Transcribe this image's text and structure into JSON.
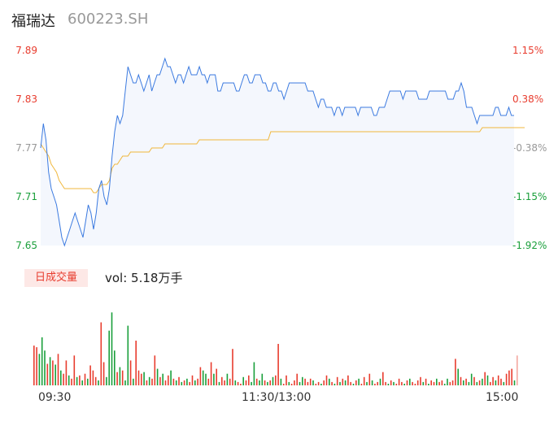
{
  "header": {
    "name": "福瑞达",
    "code": "600223.SH"
  },
  "price_axis": [
    {
      "label": "7.89",
      "color": "#e83c2e"
    },
    {
      "label": "7.83",
      "color": "#e83c2e"
    },
    {
      "label": "7.77",
      "color": "#999999"
    },
    {
      "label": "7.71",
      "color": "#1a9f3b"
    },
    {
      "label": "7.65",
      "color": "#1a9f3b"
    }
  ],
  "pct_axis": [
    {
      "label": "1.15%",
      "color": "#e83c2e"
    },
    {
      "label": "0.38%",
      "color": "#e83c2e"
    },
    {
      "label": "-0.38%",
      "color": "#999999"
    },
    {
      "label": "-1.15%",
      "color": "#1a9f3b"
    },
    {
      "label": "-1.92%",
      "color": "#1a9f3b"
    }
  ],
  "volume": {
    "badge": "日成交量",
    "text": "vol: 5.18万手"
  },
  "time_axis": [
    "09:30",
    "11:30/13:00",
    "15:00"
  ],
  "colors": {
    "price_line": "#3b7ae0",
    "avg_line": "#f0b73c",
    "up": "#e83c2e",
    "down": "#1a9f3b",
    "area": "#f4f7fd"
  },
  "chart_data": {
    "type": "line",
    "title": "",
    "ylim": [
      7.65,
      7.89
    ],
    "series": [
      {
        "values": [
          7.77,
          7.8,
          7.78,
          7.74,
          7.72,
          7.71,
          7.7,
          7.68,
          7.66,
          7.65,
          7.66,
          7.67,
          7.68,
          7.69,
          7.68,
          7.67,
          7.66,
          7.68,
          7.7,
          7.69,
          7.67,
          7.69,
          7.72,
          7.73,
          7.71,
          7.7,
          7.72,
          7.76,
          7.79,
          7.81,
          7.8,
          7.81,
          7.84,
          7.87,
          7.86,
          7.85,
          7.85,
          7.86,
          7.85,
          7.84,
          7.85,
          7.86,
          7.84,
          7.85,
          7.86,
          7.86,
          7.87,
          7.88,
          7.87,
          7.87,
          7.86,
          7.85,
          7.86,
          7.86,
          7.85,
          7.86,
          7.87,
          7.86,
          7.86,
          7.86,
          7.87,
          7.86,
          7.86,
          7.85,
          7.86,
          7.86,
          7.86,
          7.84,
          7.84,
          7.85,
          7.85,
          7.85,
          7.85,
          7.85,
          7.84,
          7.84,
          7.85,
          7.86,
          7.86,
          7.85,
          7.85,
          7.86,
          7.86,
          7.86,
          7.85,
          7.85,
          7.84,
          7.84,
          7.85,
          7.85,
          7.84,
          7.84,
          7.83,
          7.84,
          7.85,
          7.85,
          7.85,
          7.85,
          7.85,
          7.85,
          7.85,
          7.84,
          7.84,
          7.84,
          7.83,
          7.82,
          7.83,
          7.83,
          7.82,
          7.82,
          7.82,
          7.81,
          7.82,
          7.82,
          7.81,
          7.82,
          7.82,
          7.82,
          7.82,
          7.82,
          7.81,
          7.82,
          7.82,
          7.82,
          7.82,
          7.82,
          7.81,
          7.81,
          7.82,
          7.82,
          7.82,
          7.83,
          7.84,
          7.84,
          7.84,
          7.84,
          7.84,
          7.83,
          7.84,
          7.84,
          7.84,
          7.84,
          7.84,
          7.83,
          7.83,
          7.83,
          7.83,
          7.84,
          7.84,
          7.84,
          7.84,
          7.84,
          7.84,
          7.84,
          7.83,
          7.83,
          7.83,
          7.84,
          7.84,
          7.85,
          7.84,
          7.82,
          7.82,
          7.82,
          7.81,
          7.8,
          7.81,
          7.81,
          7.81,
          7.81,
          7.81,
          7.81,
          7.82,
          7.82,
          7.81,
          7.81,
          7.81,
          7.82,
          7.81,
          7.81
        ]
      },
      {
        "values": [
          7.775,
          7.77,
          7.765,
          7.76,
          7.75,
          7.745,
          7.74,
          7.73,
          7.725,
          7.72,
          7.72,
          7.72,
          7.72,
          7.72,
          7.72,
          7.72,
          7.72,
          7.72,
          7.72,
          7.72,
          7.715,
          7.715,
          7.72,
          7.725,
          7.725,
          7.725,
          7.73,
          7.745,
          7.75,
          7.75,
          7.755,
          7.76,
          7.76,
          7.76,
          7.765,
          7.765,
          7.765,
          7.765,
          7.765,
          7.765,
          7.765,
          7.765,
          7.77,
          7.77,
          7.77,
          7.77,
          7.77,
          7.775,
          7.775,
          7.775,
          7.775,
          7.775,
          7.775,
          7.775,
          7.775,
          7.775,
          7.775,
          7.775,
          7.775,
          7.775,
          7.78,
          7.78,
          7.78,
          7.78,
          7.78,
          7.78,
          7.78,
          7.78,
          7.78,
          7.78,
          7.78,
          7.78,
          7.78,
          7.78,
          7.78,
          7.78,
          7.78,
          7.78,
          7.78,
          7.78,
          7.78,
          7.78,
          7.78,
          7.78,
          7.78,
          7.78,
          7.78,
          7.79,
          7.79,
          7.79,
          7.79,
          7.79,
          7.79,
          7.79,
          7.79,
          7.79,
          7.79,
          7.79,
          7.79,
          7.79,
          7.79,
          7.79,
          7.79,
          7.79,
          7.79,
          7.79,
          7.79,
          7.79,
          7.79,
          7.79,
          7.79,
          7.79,
          7.79,
          7.79,
          7.79,
          7.79,
          7.79,
          7.79,
          7.79,
          7.79,
          7.79,
          7.79,
          7.79,
          7.79,
          7.79,
          7.79,
          7.79,
          7.79,
          7.79,
          7.79,
          7.79,
          7.79,
          7.79,
          7.79,
          7.79,
          7.79,
          7.79,
          7.79,
          7.79,
          7.79,
          7.79,
          7.79,
          7.79,
          7.79,
          7.79,
          7.79,
          7.79,
          7.79,
          7.79,
          7.79,
          7.79,
          7.79,
          7.79,
          7.79,
          7.79,
          7.79,
          7.79,
          7.79,
          7.79,
          7.79,
          7.79,
          7.79,
          7.79,
          7.79,
          7.79,
          7.79,
          7.79,
          7.795,
          7.795,
          7.795,
          7.795,
          7.795,
          7.795,
          7.795,
          7.795,
          7.795,
          7.795,
          7.795,
          7.795,
          7.795,
          7.795,
          7.795,
          7.795,
          7.795
        ]
      }
    ],
    "volume_bars": [
      [
        48,
        1
      ],
      [
        46,
        1
      ],
      [
        38,
        0
      ],
      [
        58,
        0
      ],
      [
        42,
        0
      ],
      [
        26,
        1
      ],
      [
        34,
        0
      ],
      [
        30,
        1
      ],
      [
        25,
        0
      ],
      [
        38,
        1
      ],
      [
        18,
        0
      ],
      [
        14,
        1
      ],
      [
        30,
        1
      ],
      [
        12,
        0
      ],
      [
        8,
        1
      ],
      [
        36,
        1
      ],
      [
        10,
        0
      ],
      [
        12,
        1
      ],
      [
        6,
        0
      ],
      [
        14,
        1
      ],
      [
        8,
        0
      ],
      [
        24,
        1
      ],
      [
        18,
        1
      ],
      [
        10,
        1
      ],
      [
        6,
        0
      ],
      [
        76,
        1
      ],
      [
        28,
        1
      ],
      [
        10,
        0
      ],
      [
        66,
        0
      ],
      [
        88,
        0
      ],
      [
        42,
        0
      ],
      [
        16,
        1
      ],
      [
        22,
        0
      ],
      [
        18,
        1
      ],
      [
        6,
        0
      ],
      [
        72,
        0
      ],
      [
        30,
        1
      ],
      [
        8,
        0
      ],
      [
        54,
        1
      ],
      [
        18,
        1
      ],
      [
        14,
        1
      ],
      [
        16,
        0
      ],
      [
        6,
        1
      ],
      [
        10,
        0
      ],
      [
        8,
        1
      ],
      [
        36,
        1
      ],
      [
        20,
        0
      ],
      [
        10,
        1
      ],
      [
        14,
        0
      ],
      [
        6,
        1
      ],
      [
        12,
        1
      ],
      [
        18,
        0
      ],
      [
        8,
        1
      ],
      [
        6,
        0
      ],
      [
        10,
        1
      ],
      [
        4,
        0
      ],
      [
        6,
        1
      ],
      [
        8,
        0
      ],
      [
        4,
        1
      ],
      [
        12,
        1
      ],
      [
        6,
        0
      ],
      [
        8,
        1
      ],
      [
        22,
        1
      ],
      [
        18,
        0
      ],
      [
        14,
        0
      ],
      [
        8,
        1
      ],
      [
        28,
        1
      ],
      [
        14,
        0
      ],
      [
        20,
        1
      ],
      [
        4,
        0
      ],
      [
        10,
        1
      ],
      [
        6,
        1
      ],
      [
        14,
        0
      ],
      [
        8,
        1
      ],
      [
        44,
        1
      ],
      [
        6,
        0
      ],
      [
        4,
        1
      ],
      [
        2,
        1
      ],
      [
        10,
        0
      ],
      [
        6,
        1
      ],
      [
        12,
        1
      ],
      [
        4,
        0
      ],
      [
        28,
        0
      ],
      [
        8,
        1
      ],
      [
        6,
        0
      ],
      [
        14,
        0
      ],
      [
        6,
        1
      ],
      [
        4,
        0
      ],
      [
        6,
        1
      ],
      [
        10,
        0
      ],
      [
        12,
        1
      ],
      [
        50,
        1
      ],
      [
        8,
        0
      ],
      [
        2,
        1
      ],
      [
        12,
        1
      ],
      [
        4,
        0
      ],
      [
        2,
        1
      ],
      [
        6,
        1
      ],
      [
        14,
        1
      ],
      [
        4,
        0
      ],
      [
        10,
        0
      ],
      [
        8,
        1
      ],
      [
        4,
        1
      ],
      [
        8,
        1
      ],
      [
        6,
        0
      ],
      [
        2,
        1
      ],
      [
        4,
        1
      ],
      [
        2,
        0
      ],
      [
        6,
        1
      ],
      [
        12,
        1
      ],
      [
        8,
        0
      ],
      [
        4,
        1
      ],
      [
        2,
        0
      ],
      [
        10,
        1
      ],
      [
        4,
        0
      ],
      [
        8,
        1
      ],
      [
        6,
        0
      ],
      [
        12,
        1
      ],
      [
        4,
        1
      ],
      [
        2,
        0
      ],
      [
        6,
        1
      ],
      [
        8,
        0
      ],
      [
        2,
        1
      ],
      [
        10,
        1
      ],
      [
        4,
        0
      ],
      [
        14,
        1
      ],
      [
        6,
        0
      ],
      [
        2,
        1
      ],
      [
        4,
        1
      ],
      [
        8,
        0
      ],
      [
        16,
        1
      ],
      [
        4,
        1
      ],
      [
        2,
        0
      ],
      [
        6,
        1
      ],
      [
        4,
        0
      ],
      [
        2,
        1
      ],
      [
        8,
        1
      ],
      [
        4,
        1
      ],
      [
        2,
        0
      ],
      [
        6,
        1
      ],
      [
        8,
        0
      ],
      [
        4,
        1
      ],
      [
        2,
        1
      ],
      [
        6,
        1
      ],
      [
        10,
        1
      ],
      [
        4,
        0
      ],
      [
        8,
        1
      ],
      [
        2,
        0
      ],
      [
        6,
        1
      ],
      [
        4,
        1
      ],
      [
        8,
        0
      ],
      [
        4,
        1
      ],
      [
        6,
        1
      ],
      [
        2,
        0
      ],
      [
        8,
        0
      ],
      [
        4,
        1
      ],
      [
        6,
        1
      ],
      [
        32,
        1
      ],
      [
        20,
        0
      ],
      [
        10,
        1
      ],
      [
        6,
        0
      ],
      [
        8,
        1
      ],
      [
        4,
        0
      ],
      [
        14,
        0
      ],
      [
        10,
        1
      ],
      [
        4,
        0
      ],
      [
        6,
        1
      ],
      [
        8,
        0
      ],
      [
        16,
        1
      ],
      [
        12,
        0
      ],
      [
        4,
        1
      ],
      [
        10,
        1
      ],
      [
        6,
        0
      ],
      [
        12,
        1
      ],
      [
        8,
        1
      ],
      [
        4,
        0
      ],
      [
        14,
        1
      ],
      [
        18,
        1
      ],
      [
        20,
        1
      ],
      [
        6,
        0
      ],
      [
        36,
        1
      ]
    ]
  }
}
